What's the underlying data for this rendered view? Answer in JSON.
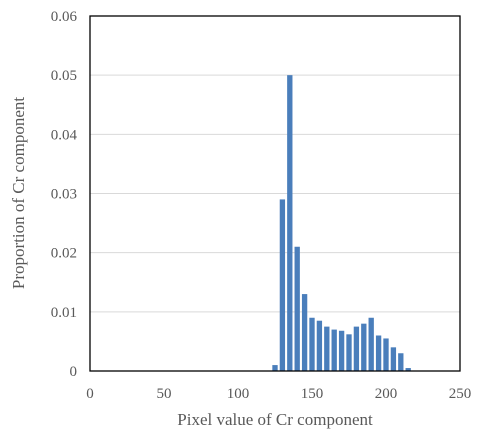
{
  "chart_data": {
    "type": "bar",
    "title": "",
    "xlabel": "Pixel value of Cr component",
    "ylabel": "Proportion of Cr component",
    "xlim": [
      0,
      250
    ],
    "ylim": [
      0,
      0.06
    ],
    "x_ticks": [
      "0",
      "50",
      "100",
      "150",
      "200",
      "250"
    ],
    "y_ticks": [
      "0",
      "0.01",
      "0.02",
      "0.03",
      "0.04",
      "0.05",
      "0.06"
    ],
    "grid": "horizontal",
    "legend": "none",
    "bar_color": "#4a7ebb",
    "bin_width": 5,
    "series": [
      {
        "x": [
          125,
          130,
          135,
          140,
          145,
          150,
          155,
          160,
          165,
          170,
          175,
          180,
          185,
          190,
          195,
          200,
          205,
          210,
          215
        ],
        "values": [
          0.001,
          0.029,
          0.05,
          0.021,
          0.013,
          0.009,
          0.0085,
          0.0075,
          0.007,
          0.0068,
          0.0062,
          0.0075,
          0.008,
          0.009,
          0.006,
          0.0055,
          0.004,
          0.003,
          0.0005
        ]
      }
    ]
  }
}
